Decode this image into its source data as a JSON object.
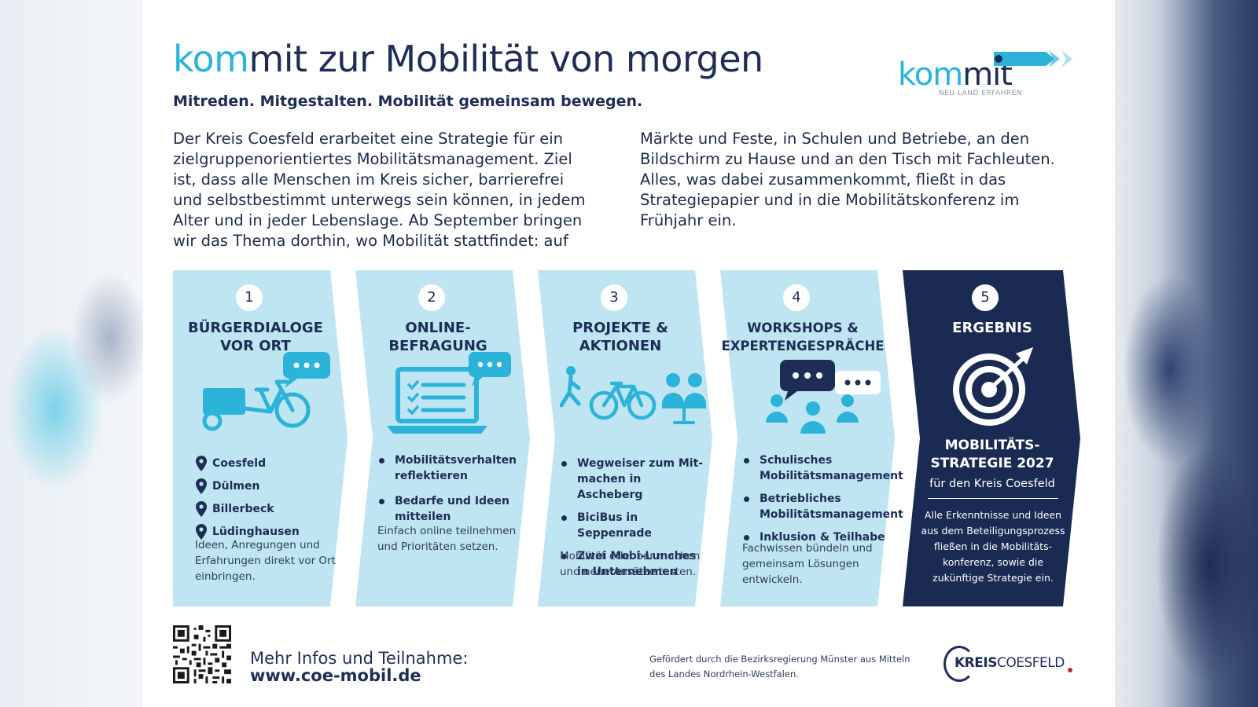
{
  "header": {
    "title_accent": "kom",
    "title_rest": "mit zur Mobilität von morgen",
    "subtitle": "Mitreden. Mitgestalten. Mobilität gemeinsam bewegen."
  },
  "logo": {
    "word_accent": "kom",
    "word_dark": "mit",
    "tagline": "NEU LAND ERFAHREN"
  },
  "intro": {
    "left": "Der Kreis Coesfeld erarbeitet eine Strategie für ein zielgruppenorientiertes Mobilitätsmanagement. Ziel ist, dass alle Menschen im Kreis sicher, barrierefrei und selbstbestimmt unterwegs sein können, in jedem Alter und in jeder Lebenslage. Ab September bringen wir das Thema dorthin, wo Mobilität stattfindet: auf",
    "right": "Märkte und Feste, in Schulen und Betriebe, an den Bildschirm zu Hause und an den Tisch mit Fachleuten. Alles, was dabei zusammenkommt, fließt in das Strategiepapier und in die Mobilitätskonferenz im Frühjahr ein."
  },
  "steps": [
    {
      "number": "1",
      "heading_line1": "BÜRGERDIALOGE",
      "heading_line2": "VOR ORT",
      "icon": "cargo-bike-chat-icon",
      "items": [
        "Coesfeld",
        "Dülmen",
        "Billerbeck",
        "Lüdinghausen"
      ],
      "note": "Ideen, Anregungen und Erfahrungen direkt vor Ort einbringen."
    },
    {
      "number": "2",
      "heading_line1": "ONLINE-",
      "heading_line2": "BEFRAGUNG",
      "icon": "laptop-checklist-icon",
      "items": [
        "Mobilitätsverhalten reflektieren",
        "Bedarfe und Ideen mitteilen"
      ],
      "note": "Einfach online teilnehmen und Prioritäten setzen."
    },
    {
      "number": "3",
      "heading_line1": "PROJEKTE &",
      "heading_line2": "AKTIONEN",
      "icon": "walker-bike-people-icon",
      "items": [
        "Wegweiser zum Mit- machen in Ascheberg",
        "BiciBus in Seppenrade",
        "Zwei Mobi-Lunches in Unternehmen"
      ],
      "note": "Mobilität erlebbar machen und neue Ansätze testen."
    },
    {
      "number": "4",
      "heading_line1": "WORKSHOPS &",
      "heading_line2": "EXPERTENGESPRÄCHE",
      "icon": "group-discussion-icon",
      "items": [
        "Schulisches Mobilitätsmanagement",
        "Betriebliches Mobilitätsmanagement",
        "Inklusion & Teilhabe"
      ],
      "note": "Fachwissen bündeln und gemeinsam Lösungen entwickeln."
    },
    {
      "number": "5",
      "heading": "ERGEBNIS",
      "icon": "target-arrow-icon",
      "big_line1": "MOBILITÄTS-",
      "big_line2": "STRATEGIE 2027",
      "sub": "für den Kreis Coesfeld",
      "note": "Alle Erkenntnisse und Ideen aus dem Beteiligungsprozess fließen in die Mobilitäts- konferenz, sowie die zukünftige Strategie ein."
    }
  ],
  "footer": {
    "more_label": "Mehr Infos und Teilnahme:",
    "more_url": "www.coe-mobil.de",
    "funding": "Gefördert durch die Bezirksregierung Münster aus Mitteln des Landes Nordrhein-Westfalen.",
    "kreis_bold": "KREIS",
    "kreis_rest": "COESFELD"
  },
  "colors": {
    "navy": "#1e2d55",
    "accent": "#2bb3d9",
    "panel": "#bfe5f2",
    "icon": "#2bb3d9"
  }
}
